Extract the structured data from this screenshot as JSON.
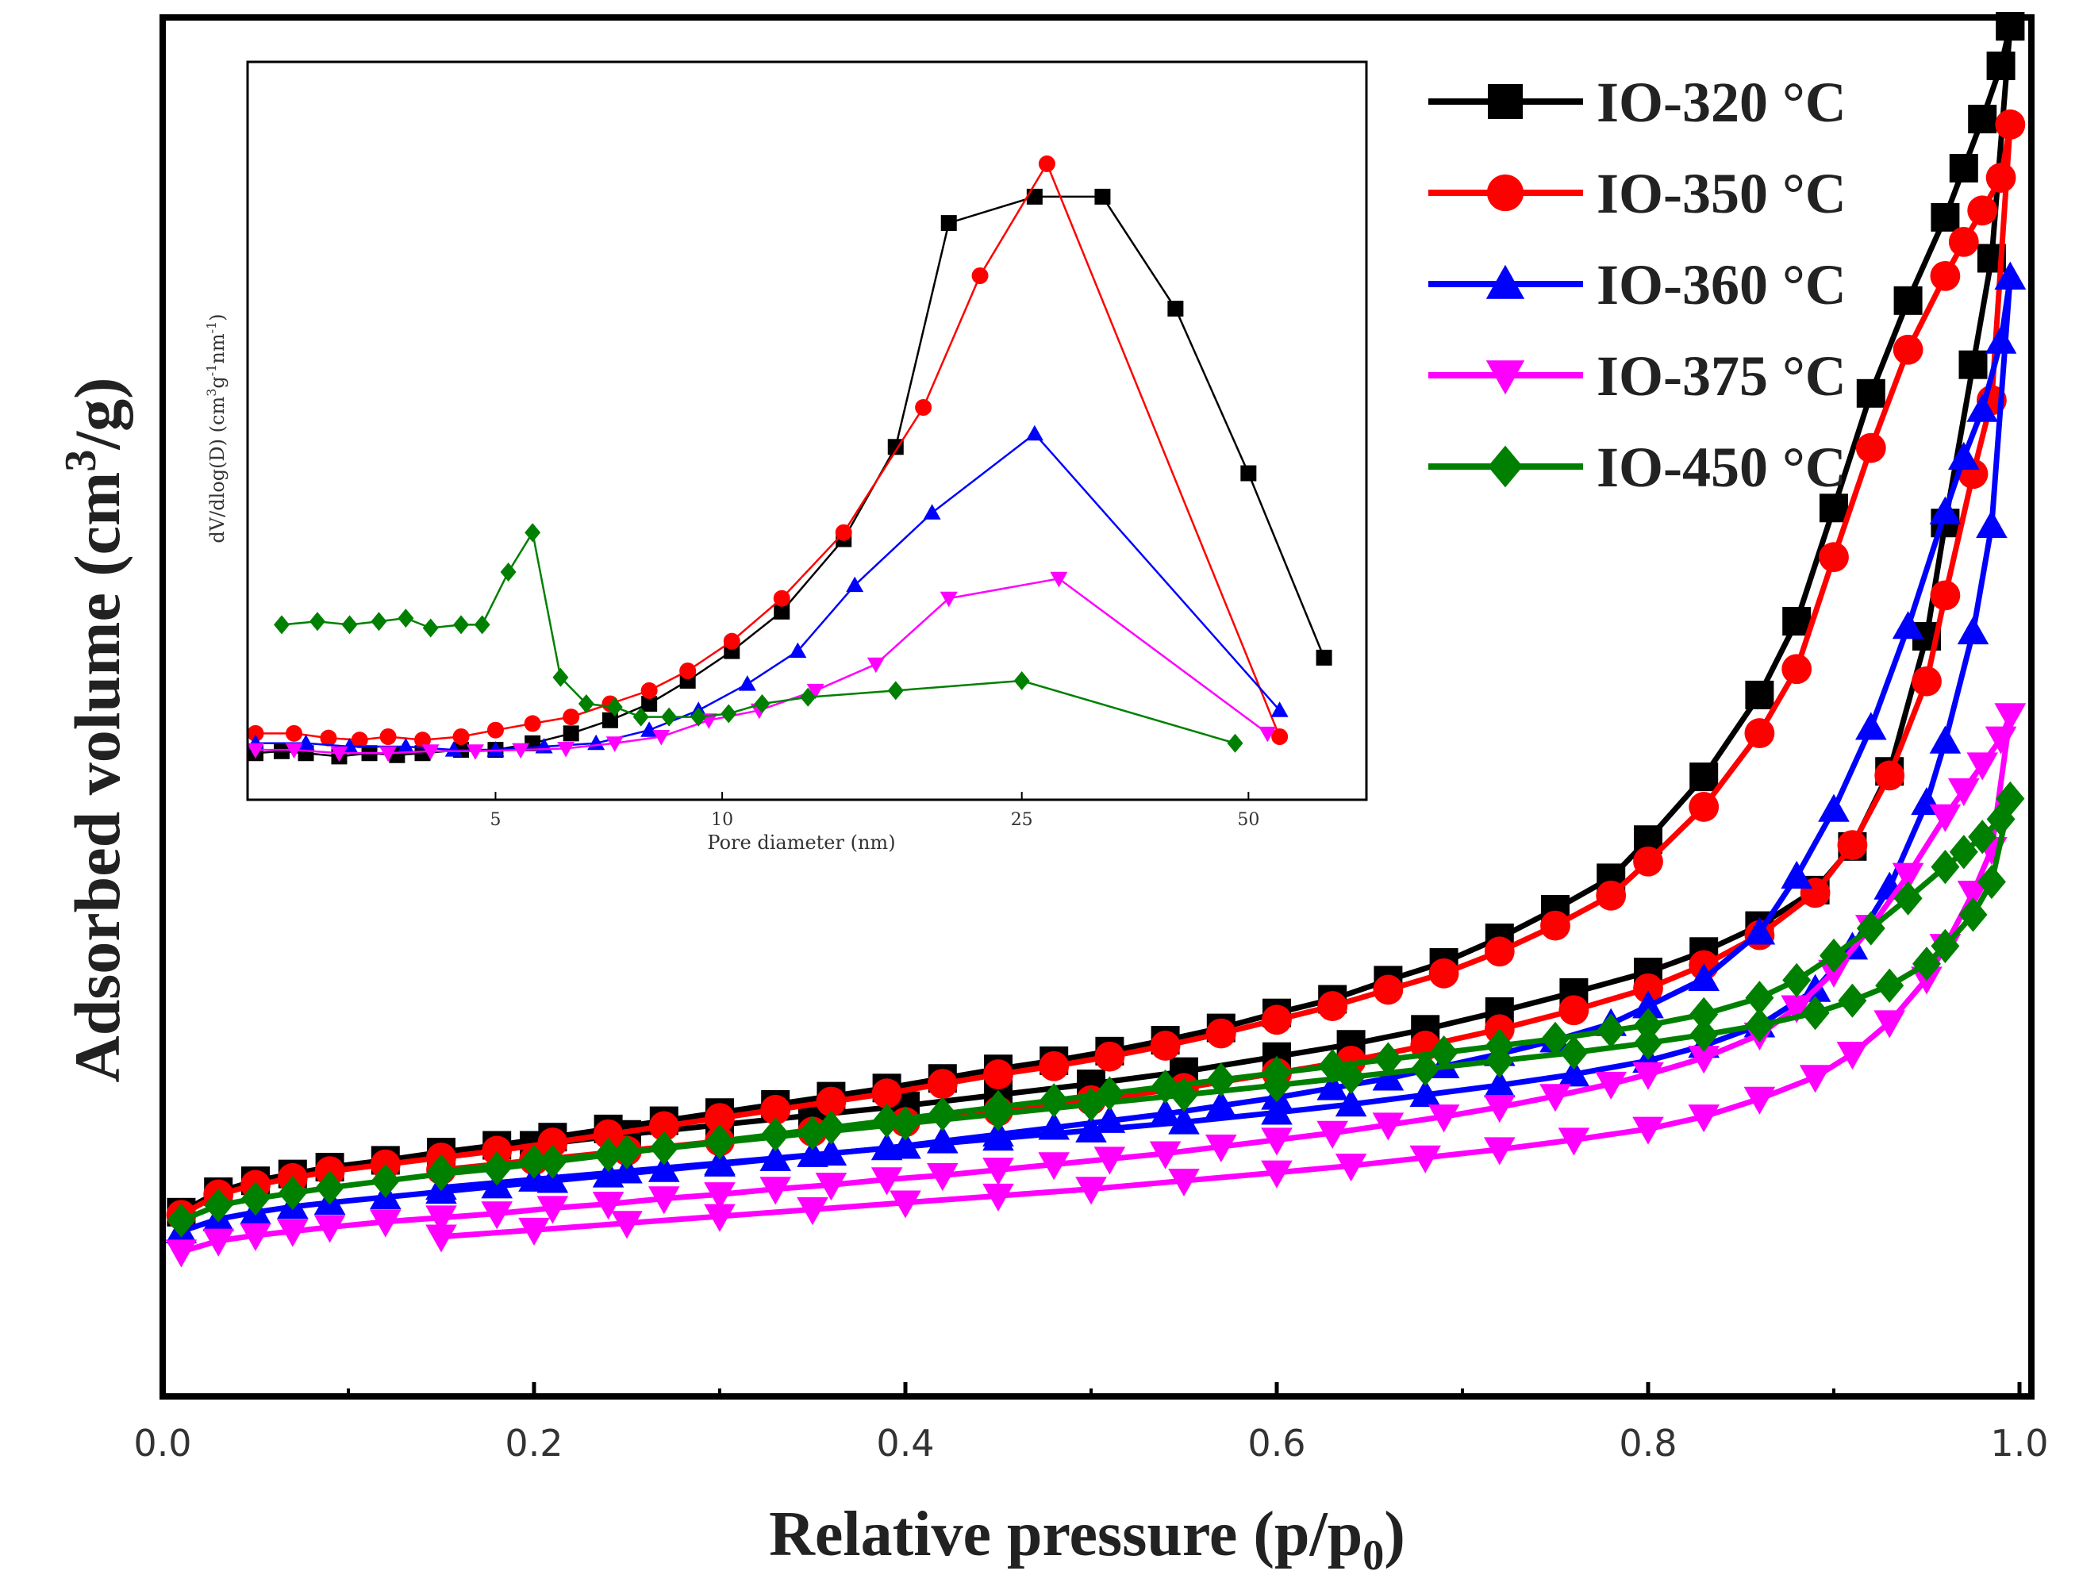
{
  "chart_data": [
    {
      "type": "line",
      "title": "",
      "xlabel": "Relative pressure (p/p",
      "xlabel_sub": "0",
      "xlabel_end": ")",
      "ylabel": "Adsorbed volume (cm",
      "ylabel_sup": "3",
      "ylabel_end": "/g)",
      "xlim": [
        0,
        1.0
      ],
      "ylim": [
        0,
        100
      ],
      "xticks": [
        "0.0",
        "0.2",
        "0.4",
        "0.6",
        "0.8",
        "1.0"
      ],
      "xtick_values": [
        0,
        0.2,
        0.4,
        0.6,
        0.8,
        1.0
      ],
      "legend": {
        "position": "top-right"
      },
      "series": [
        {
          "name": "IO-320 °C",
          "color": "#000000",
          "marker": "square",
          "x": [
            0.01,
            0.03,
            0.05,
            0.07,
            0.09,
            0.12,
            0.15,
            0.18,
            0.21,
            0.24,
            0.27,
            0.3,
            0.33,
            0.36,
            0.39,
            0.42,
            0.45,
            0.48,
            0.51,
            0.54,
            0.57,
            0.6,
            0.63,
            0.66,
            0.69,
            0.72,
            0.75,
            0.78,
            0.8,
            0.83,
            0.86,
            0.88,
            0.9,
            0.92,
            0.94,
            0.96,
            0.97,
            0.98,
            0.99,
            0.995
          ],
          "y": [
            13.5,
            15.0,
            15.8,
            16.3,
            16.8,
            17.3,
            17.9,
            18.4,
            19.0,
            19.6,
            20.2,
            20.8,
            21.4,
            22.0,
            22.6,
            23.3,
            24.0,
            24.6,
            25.3,
            26.1,
            27.0,
            28.1,
            29.1,
            30.5,
            31.8,
            33.6,
            35.7,
            38.0,
            40.8,
            45.4,
            51.4,
            56.8,
            65.1,
            73.5,
            80.3,
            86.4,
            90.0,
            93.6,
            97.5,
            100.4
          ]
        },
        {
          "name": "IO-320 desorption",
          "color": "#000000",
          "marker": "square",
          "legend": false,
          "x": [
            0.995,
            0.985,
            0.975,
            0.96,
            0.95,
            0.93,
            0.91,
            0.89,
            0.86,
            0.83,
            0.8,
            0.76,
            0.72,
            0.68,
            0.64,
            0.6,
            0.55,
            0.5,
            0.45,
            0.4,
            0.35,
            0.3,
            0.25,
            0.2,
            0.15
          ],
          "y": [
            100.4,
            83.4,
            75.6,
            64.0,
            55.7,
            45.8,
            40.3,
            37.1,
            34.5,
            32.6,
            31.1,
            29.6,
            28.2,
            26.9,
            25.8,
            24.9,
            23.8,
            22.9,
            22.1,
            21.3,
            20.6,
            19.9,
            19.2,
            18.4,
            17.6
          ]
        },
        {
          "name": "IO-350 °C",
          "color": "#ff0000",
          "marker": "circle",
          "x": [
            0.01,
            0.03,
            0.05,
            0.07,
            0.09,
            0.12,
            0.15,
            0.18,
            0.21,
            0.24,
            0.27,
            0.3,
            0.33,
            0.36,
            0.39,
            0.42,
            0.45,
            0.48,
            0.51,
            0.54,
            0.57,
            0.6,
            0.63,
            0.66,
            0.69,
            0.72,
            0.75,
            0.78,
            0.8,
            0.83,
            0.86,
            0.88,
            0.9,
            0.92,
            0.94,
            0.96,
            0.97,
            0.98,
            0.99,
            0.995
          ],
          "y": [
            13.3,
            14.8,
            15.5,
            16.0,
            16.5,
            17.0,
            17.5,
            18.0,
            18.6,
            19.2,
            19.8,
            20.4,
            21.0,
            21.6,
            22.2,
            22.9,
            23.6,
            24.2,
            24.9,
            25.7,
            26.6,
            27.6,
            28.6,
            29.8,
            31.0,
            32.6,
            34.5,
            36.7,
            39.2,
            43.2,
            48.6,
            53.3,
            61.5,
            69.5,
            76.7,
            82.1,
            84.6,
            86.9,
            89.3,
            93.2
          ]
        },
        {
          "name": "IO-350 desorption",
          "color": "#ff0000",
          "marker": "circle",
          "legend": false,
          "x": [
            0.995,
            0.985,
            0.975,
            0.96,
            0.95,
            0.93,
            0.91,
            0.89,
            0.86,
            0.83,
            0.8,
            0.76,
            0.72,
            0.68,
            0.64,
            0.6,
            0.55,
            0.5,
            0.45,
            0.4,
            0.35,
            0.3,
            0.25,
            0.2,
            0.15
          ],
          "y": [
            93.2,
            73.0,
            67.6,
            58.7,
            52.4,
            45.5,
            40.4,
            36.9,
            33.8,
            31.6,
            29.9,
            28.3,
            26.9,
            25.7,
            24.6,
            23.7,
            22.6,
            21.7,
            20.9,
            20.1,
            19.4,
            18.7,
            18.0,
            17.3,
            16.6
          ]
        },
        {
          "name": "IO-360 °C",
          "color": "#0000ff",
          "marker": "triangle-up",
          "x": [
            0.01,
            0.03,
            0.05,
            0.07,
            0.09,
            0.12,
            0.15,
            0.18,
            0.21,
            0.24,
            0.27,
            0.3,
            0.33,
            0.36,
            0.39,
            0.42,
            0.45,
            0.48,
            0.51,
            0.54,
            0.57,
            0.6,
            0.63,
            0.66,
            0.69,
            0.72,
            0.75,
            0.78,
            0.8,
            0.83,
            0.86,
            0.88,
            0.9,
            0.92,
            0.94,
            0.96,
            0.97,
            0.98,
            0.99,
            0.995
          ],
          "y": [
            12.1,
            13.0,
            13.5,
            13.9,
            14.2,
            14.6,
            15.0,
            15.4,
            15.8,
            16.2,
            16.6,
            17.0,
            17.4,
            17.8,
            18.2,
            18.7,
            19.2,
            19.7,
            20.2,
            20.7,
            21.3,
            21.9,
            22.6,
            23.3,
            24.2,
            25.1,
            26.1,
            27.3,
            28.6,
            30.6,
            34.0,
            38.1,
            43.0,
            49.0,
            56.4,
            64.8,
            68.8,
            72.3,
            77.3,
            82.0
          ]
        },
        {
          "name": "IO-360 desorption",
          "color": "#0000ff",
          "marker": "triangle-up",
          "legend": false,
          "x": [
            0.995,
            0.985,
            0.975,
            0.96,
            0.95,
            0.93,
            0.91,
            0.89,
            0.86,
            0.83,
            0.8,
            0.76,
            0.72,
            0.68,
            0.64,
            0.6,
            0.55,
            0.5,
            0.45,
            0.4,
            0.35,
            0.3,
            0.25,
            0.2,
            0.15
          ],
          "y": [
            82.0,
            63.8,
            56.0,
            48.0,
            43.5,
            37.3,
            32.9,
            29.8,
            27.2,
            25.7,
            24.6,
            23.6,
            22.8,
            22.1,
            21.4,
            20.8,
            20.1,
            19.5,
            18.9,
            18.3,
            17.7,
            17.1,
            16.5,
            15.9,
            15.3
          ]
        },
        {
          "name": "IO-375 °C",
          "color": "#ff00ff",
          "marker": "triangle-down",
          "x": [
            0.01,
            0.03,
            0.05,
            0.07,
            0.09,
            0.12,
            0.15,
            0.18,
            0.21,
            0.24,
            0.27,
            0.3,
            0.33,
            0.36,
            0.39,
            0.42,
            0.45,
            0.48,
            0.51,
            0.54,
            0.57,
            0.6,
            0.63,
            0.66,
            0.69,
            0.72,
            0.75,
            0.78,
            0.8,
            0.83,
            0.86,
            0.88,
            0.9,
            0.92,
            0.94,
            0.96,
            0.97,
            0.98,
            0.99,
            0.995
          ],
          "y": [
            10.6,
            11.4,
            11.8,
            12.1,
            12.4,
            12.8,
            13.1,
            13.4,
            13.8,
            14.1,
            14.5,
            14.8,
            15.2,
            15.5,
            15.9,
            16.2,
            16.6,
            17.0,
            17.4,
            17.8,
            18.3,
            18.8,
            19.3,
            19.9,
            20.5,
            21.2,
            22.0,
            22.9,
            23.6,
            24.8,
            26.5,
            28.5,
            31.1,
            34.4,
            38.2,
            42.5,
            44.4,
            46.3,
            48.2,
            49.9
          ]
        },
        {
          "name": "IO-375 desorption",
          "color": "#ff00ff",
          "marker": "triangle-down",
          "legend": false,
          "x": [
            0.995,
            0.985,
            0.975,
            0.96,
            0.95,
            0.93,
            0.91,
            0.89,
            0.86,
            0.83,
            0.8,
            0.76,
            0.72,
            0.68,
            0.64,
            0.6,
            0.55,
            0.5,
            0.45,
            0.4,
            0.35,
            0.3,
            0.25,
            0.2,
            0.15
          ],
          "y": [
            49.9,
            40.1,
            36.9,
            33.0,
            30.6,
            27.4,
            25.1,
            23.4,
            21.8,
            20.5,
            19.6,
            18.8,
            18.1,
            17.5,
            16.9,
            16.4,
            15.8,
            15.2,
            14.7,
            14.2,
            13.7,
            13.2,
            12.7,
            12.2,
            11.7
          ]
        },
        {
          "name": "IO-450 °C",
          "color": "#008000",
          "marker": "diamond",
          "x": [
            0.01,
            0.03,
            0.05,
            0.07,
            0.09,
            0.12,
            0.15,
            0.18,
            0.21,
            0.24,
            0.27,
            0.3,
            0.33,
            0.36,
            0.39,
            0.42,
            0.45,
            0.48,
            0.51,
            0.54,
            0.57,
            0.6,
            0.63,
            0.66,
            0.69,
            0.72,
            0.75,
            0.78,
            0.8,
            0.83,
            0.86,
            0.88,
            0.9,
            0.92,
            0.94,
            0.96,
            0.97,
            0.98,
            0.99,
            0.995
          ],
          "y": [
            12.9,
            14.0,
            14.5,
            14.9,
            15.3,
            15.8,
            16.3,
            16.7,
            17.2,
            17.7,
            18.2,
            18.7,
            19.2,
            19.7,
            20.2,
            20.7,
            21.2,
            21.7,
            22.2,
            22.7,
            23.2,
            23.7,
            24.2,
            24.7,
            25.2,
            25.7,
            26.2,
            26.8,
            27.2,
            28.0,
            29.2,
            30.5,
            32.3,
            34.3,
            36.5,
            38.8,
            39.9,
            41.0,
            42.3,
            43.8
          ]
        },
        {
          "name": "IO-450 desorption",
          "color": "#008000",
          "marker": "diamond",
          "legend": false,
          "x": [
            0.995,
            0.985,
            0.975,
            0.96,
            0.95,
            0.93,
            0.91,
            0.89,
            0.86,
            0.83,
            0.8,
            0.76,
            0.72,
            0.68,
            0.64,
            0.6,
            0.55,
            0.5,
            0.45,
            0.4,
            0.35,
            0.3,
            0.25,
            0.2,
            0.15
          ],
          "y": [
            43.8,
            37.7,
            35.3,
            33.0,
            31.7,
            30.1,
            29.0,
            28.1,
            27.2,
            26.5,
            25.9,
            25.2,
            24.6,
            24.0,
            23.4,
            22.8,
            22.1,
            21.4,
            20.7,
            20.0,
            19.3,
            18.6,
            17.9,
            17.2,
            16.5
          ]
        }
      ]
    },
    {
      "type": "line",
      "title": "",
      "xlabel": "Pore diameter (nm)",
      "ylabel": "dV/dlog(D) (cm",
      "ylabel_sup1": "3",
      "ylabel_mid": "g",
      "ylabel_sup2": "-1",
      "ylabel_mid2": "nm",
      "ylabel_sup3": "-1",
      "ylabel_end": ")",
      "xscale": "log",
      "xlim": [
        2.4,
        70
      ],
      "ylim": [
        0,
        10
      ],
      "xticks": [
        "5",
        "10",
        "25",
        "50"
      ],
      "xtick_values": [
        5,
        10,
        25,
        50
      ],
      "series": [
        {
          "name": "IO-320 °C",
          "color": "#000000",
          "marker": "square",
          "x": [
            2.4,
            2.6,
            2.8,
            3.1,
            3.4,
            3.7,
            4.0,
            4.5,
            5.0,
            5.6,
            6.3,
            7.1,
            8.0,
            9.0,
            10.3,
            12.0,
            14.5,
            17.0,
            20.0,
            26.0,
            32.0,
            40.0,
            50.0,
            63.0
          ],
          "y": [
            0.25,
            0.28,
            0.25,
            0.2,
            0.25,
            0.22,
            0.25,
            0.3,
            0.3,
            0.4,
            0.55,
            0.75,
            1.0,
            1.35,
            1.8,
            2.4,
            3.5,
            4.9,
            8.3,
            8.7,
            8.7,
            7.0,
            4.5,
            1.7
          ]
        },
        {
          "name": "IO-350 °C",
          "color": "#ff0000",
          "marker": "circle",
          "x": [
            2.4,
            2.7,
            3.0,
            3.3,
            3.6,
            4.0,
            4.5,
            5.0,
            5.6,
            6.3,
            7.1,
            8.0,
            9.0,
            10.3,
            12.0,
            14.5,
            18.5,
            22.0,
            27.0,
            55.0
          ],
          "y": [
            0.55,
            0.55,
            0.48,
            0.45,
            0.5,
            0.45,
            0.5,
            0.6,
            0.7,
            0.8,
            1.0,
            1.2,
            1.5,
            1.95,
            2.6,
            3.6,
            5.5,
            7.5,
            9.2,
            0.5
          ]
        },
        {
          "name": "IO-360 °C",
          "color": "#0000ff",
          "marker": "triangle-up",
          "x": [
            2.4,
            2.8,
            3.2,
            3.8,
            4.4,
            5.0,
            5.8,
            6.8,
            8.0,
            9.3,
            10.8,
            12.6,
            15.0,
            19.0,
            26.0,
            55.0
          ],
          "y": [
            0.4,
            0.4,
            0.35,
            0.35,
            0.3,
            0.3,
            0.35,
            0.4,
            0.6,
            0.9,
            1.3,
            1.8,
            2.8,
            3.9,
            5.1,
            0.9
          ]
        },
        {
          "name": "IO-375 °C",
          "color": "#ff00ff",
          "marker": "triangle-down",
          "x": [
            2.4,
            2.7,
            3.1,
            3.6,
            4.1,
            4.7,
            5.4,
            6.2,
            7.2,
            8.3,
            9.6,
            11.2,
            13.3,
            16.0,
            20.0,
            28.0,
            53.0
          ],
          "y": [
            0.3,
            0.3,
            0.25,
            0.25,
            0.28,
            0.28,
            0.3,
            0.32,
            0.4,
            0.5,
            0.75,
            0.9,
            1.2,
            1.6,
            2.6,
            2.9,
            0.55
          ]
        },
        {
          "name": "IO-450 °C",
          "color": "#008000",
          "marker": "diamond",
          "x": [
            2.6,
            2.9,
            3.2,
            3.5,
            3.8,
            4.1,
            4.5,
            4.8,
            5.2,
            5.6,
            6.1,
            6.6,
            7.2,
            7.8,
            8.5,
            9.3,
            10.2,
            11.3,
            13.0,
            17.0,
            25.0,
            48.0
          ],
          "y": [
            2.2,
            2.25,
            2.2,
            2.25,
            2.3,
            2.15,
            2.2,
            2.2,
            3.0,
            3.6,
            1.4,
            1.0,
            0.95,
            0.8,
            0.8,
            0.8,
            0.85,
            1.0,
            1.1,
            1.2,
            1.35,
            0.4
          ]
        }
      ]
    }
  ],
  "legend_entries": [
    "IO-320 °C",
    "IO-350 °C",
    "IO-360 °C",
    "IO-375 °C",
    "IO-450 °C"
  ]
}
